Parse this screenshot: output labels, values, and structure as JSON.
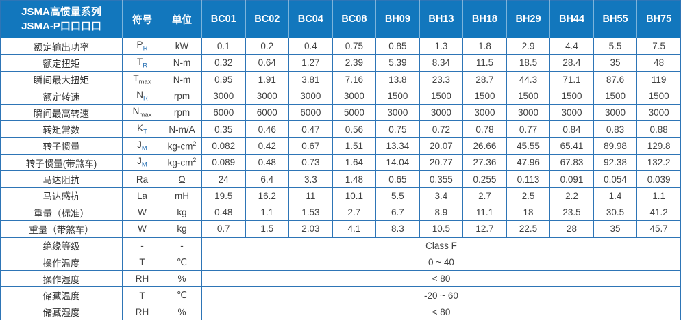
{
  "table": {
    "header": {
      "series_title_line1": "JSMA高惯量系列",
      "series_title_line2": "JSMA-P口口口口",
      "symbol_col": "符号",
      "unit_col": "单位",
      "models": [
        "BC01",
        "BC02",
        "BC04",
        "BC08",
        "BH09",
        "BH13",
        "BH18",
        "BH29",
        "BH44",
        "BH55",
        "BH75"
      ]
    },
    "spec_rows": [
      {
        "label": "额定输出功率",
        "sym": "P",
        "sub": "R",
        "unit": "kW",
        "values": [
          "0.1",
          "0.2",
          "0.4",
          "0.75",
          "0.85",
          "1.3",
          "1.8",
          "2.9",
          "4.4",
          "5.5",
          "7.5"
        ]
      },
      {
        "label": "额定扭矩",
        "sym": "T",
        "sub": "R",
        "unit": "N-m",
        "values": [
          "0.32",
          "0.64",
          "1.27",
          "2.39",
          "5.39",
          "8.34",
          "11.5",
          "18.5",
          "28.4",
          "35",
          "48"
        ]
      },
      {
        "label": "瞬间最大扭矩",
        "sym": "T",
        "sub": "max",
        "unit": "N-m",
        "values": [
          "0.95",
          "1.91",
          "3.81",
          "7.16",
          "13.8",
          "23.3",
          "28.7",
          "44.3",
          "71.1",
          "87.6",
          "119"
        ]
      },
      {
        "label": "额定转速",
        "sym": "N",
        "sub": "R",
        "unit": "rpm",
        "values": [
          "3000",
          "3000",
          "3000",
          "3000",
          "1500",
          "1500",
          "1500",
          "1500",
          "1500",
          "1500",
          "1500"
        ]
      },
      {
        "label": "瞬间最高转速",
        "sym": "N",
        "sub": "max",
        "unit": "rpm",
        "values": [
          "6000",
          "6000",
          "6000",
          "5000",
          "3000",
          "3000",
          "3000",
          "3000",
          "3000",
          "3000",
          "3000"
        ]
      },
      {
        "label": "转矩常数",
        "sym": "K",
        "sub": "T",
        "unit": "N-m/A",
        "values": [
          "0.35",
          "0.46",
          "0.47",
          "0.56",
          "0.75",
          "0.72",
          "0.78",
          "0.77",
          "0.84",
          "0.83",
          "0.88"
        ]
      },
      {
        "label": "转子惯量",
        "sym": "J",
        "sub": "M",
        "unit": "kg-cm",
        "unit_sup": "2",
        "values": [
          "0.082",
          "0.42",
          "0.67",
          "1.51",
          "13.34",
          "20.07",
          "26.66",
          "45.55",
          "65.41",
          "89.98",
          "129.8"
        ]
      },
      {
        "label": "转子惯量(带煞车)",
        "sym": "J",
        "sub": "M",
        "unit": "kg-cm",
        "unit_sup": "2",
        "values": [
          "0.089",
          "0.48",
          "0.73",
          "1.64",
          "14.04",
          "20.77",
          "27.36",
          "47.96",
          "67.83",
          "92.38",
          "132.2"
        ]
      },
      {
        "label": "马达阻抗",
        "sym": "Ra",
        "unit": "Ω",
        "values": [
          "24",
          "6.4",
          "3.3",
          "1.48",
          "0.65",
          "0.355",
          "0.255",
          "0.113",
          "0.091",
          "0.054",
          "0.039"
        ]
      },
      {
        "label": "马达感抗",
        "sym": "La",
        "unit": "mH",
        "values": [
          "19.5",
          "16.2",
          "11",
          "10.1",
          "5.5",
          "3.4",
          "2.7",
          "2.5",
          "2.2",
          "1.4",
          "1.1"
        ]
      },
      {
        "label": "重量（标准）",
        "sym": "W",
        "unit": "kg",
        "values": [
          "0.48",
          "1.1",
          "1.53",
          "2.7",
          "6.7",
          "8.9",
          "11.1",
          "18",
          "23.5",
          "30.5",
          "41.2"
        ]
      },
      {
        "label": "重量（带煞车）",
        "sym": "W",
        "unit": "kg",
        "values": [
          "0.7",
          "1.5",
          "2.03",
          "4.1",
          "8.3",
          "10.5",
          "12.7",
          "22.5",
          "28",
          "35",
          "45.7"
        ]
      }
    ],
    "env_rows": [
      {
        "label": "绝缘等级",
        "sym": "-",
        "unit": "-",
        "value": "Class F"
      },
      {
        "label": "操作温度",
        "sym": "T",
        "unit": "℃",
        "value": "0 ~ 40"
      },
      {
        "label": "操作湿度",
        "sym": "RH",
        "unit": "%",
        "value": "< 80"
      },
      {
        "label": "储藏温度",
        "sym": "T",
        "unit": "℃",
        "value": "-20 ~ 60"
      },
      {
        "label": "储藏湿度",
        "sym": "RH",
        "unit": "%",
        "value": "< 80"
      }
    ],
    "colors": {
      "header_bg": "#1277bd",
      "border": "#2e75b6",
      "subscript_accent": "#2e75b6",
      "text": "#404040"
    }
  }
}
